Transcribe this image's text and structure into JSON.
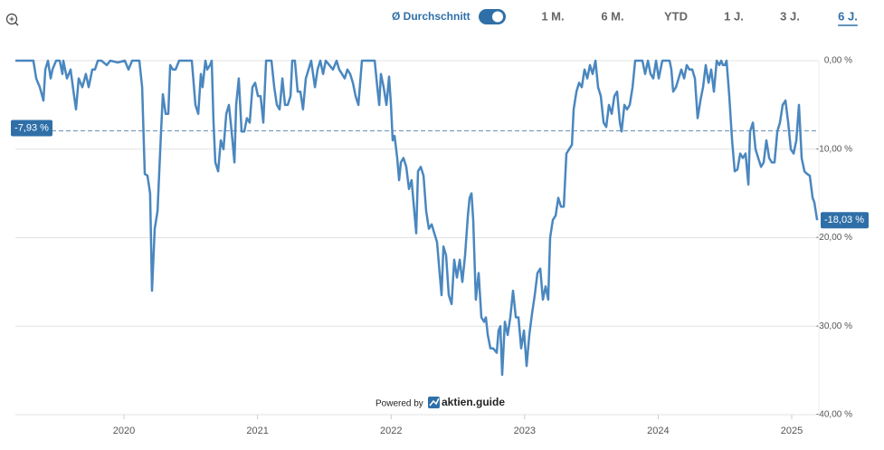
{
  "toolbar": {
    "average_toggle": "Ø Durchschnitt",
    "ranges": [
      "1 M.",
      "6 M.",
      "YTD",
      "1 J.",
      "3 J.",
      "6 J."
    ],
    "active": 5
  },
  "watermark": {
    "prefix": "Powered by",
    "brand": "aktien.guide"
  },
  "chart_data": {
    "type": "line",
    "xlim": [
      2019.187,
      2025.203
    ],
    "xticks": [
      2020,
      2021,
      2022,
      2023,
      2024,
      2025
    ],
    "ylim": [
      -40,
      0
    ],
    "yticks": [
      {
        "value": 0,
        "label": "0,00 %"
      },
      {
        "value": -10,
        "label": "-10,00 %"
      },
      {
        "value": -20,
        "label": "-20,00 %"
      },
      {
        "value": -30,
        "label": "-30,00 %"
      },
      {
        "value": -40,
        "label": "-40,00 %"
      }
    ],
    "grid": true,
    "average": {
      "value": -7.93,
      "label": "-7,93 %"
    },
    "last": {
      "value": -18.03,
      "label": "-18,03 %"
    },
    "x": [
      2019.187,
      2019.322,
      2019.343,
      2019.37,
      2019.397,
      2019.411,
      2019.431,
      2019.451,
      2019.465,
      2019.492,
      2019.519,
      2019.539,
      2019.546,
      2019.573,
      2019.6,
      2019.627,
      2019.641,
      2019.661,
      2019.688,
      2019.715,
      2019.736,
      2019.763,
      2019.783,
      2019.804,
      2019.831,
      2019.871,
      2019.898,
      2019.953,
      2020.007,
      2020.034,
      2020.061,
      2020.115,
      2020.136,
      2020.156,
      2020.176,
      2020.196,
      2020.21,
      2020.23,
      2020.251,
      2020.278,
      2020.291,
      2020.312,
      2020.332,
      2020.346,
      2020.366,
      2020.386,
      2020.413,
      2020.461,
      2020.508,
      2020.535,
      2020.556,
      2020.576,
      2020.589,
      2020.61,
      2020.623,
      2020.644,
      2020.657,
      2020.671,
      2020.684,
      2020.705,
      2020.725,
      2020.745,
      2020.766,
      2020.786,
      2020.806,
      2020.827,
      2020.84,
      2020.86,
      2020.881,
      2020.901,
      2020.921,
      2020.942,
      2020.962,
      2020.982,
      2021.003,
      2021.023,
      2021.043,
      2021.064,
      2021.084,
      2021.104,
      2021.125,
      2021.145,
      2021.165,
      2021.186,
      2021.206,
      2021.226,
      2021.247,
      2021.26,
      2021.28,
      2021.301,
      2021.321,
      2021.341,
      2021.362,
      2021.382,
      2021.402,
      2021.43,
      2021.45,
      2021.47,
      2021.491,
      2021.511,
      2021.538,
      2021.565,
      2021.592,
      2021.612,
      2021.633,
      2021.653,
      2021.673,
      2021.694,
      2021.714,
      2021.734,
      2021.755,
      2021.782,
      2021.809,
      2021.85,
      2021.877,
      2021.897,
      2021.911,
      2021.924,
      2021.944,
      2021.965,
      2021.985,
      2021.999,
      2022.012,
      2022.026,
      2022.046,
      2022.06,
      2022.073,
      2022.093,
      2022.114,
      2022.134,
      2022.154,
      2022.168,
      2022.188,
      2022.202,
      2022.222,
      2022.243,
      2022.263,
      2022.283,
      2022.304,
      2022.324,
      2022.344,
      2022.364,
      2022.378,
      2022.392,
      2022.412,
      2022.432,
      2022.453,
      2022.473,
      2022.493,
      2022.514,
      2022.534,
      2022.554,
      2022.575,
      2022.588,
      2022.602,
      2022.615,
      2022.635,
      2022.656,
      2022.676,
      2022.696,
      2022.71,
      2022.724,
      2022.744,
      2022.764,
      2022.791,
      2022.805,
      2022.818,
      2022.832,
      2022.852,
      2022.873,
      2022.893,
      2022.913,
      2022.934,
      2022.954,
      2022.974,
      2022.995,
      2023.015,
      2023.035,
      2023.056,
      2023.076,
      2023.096,
      2023.117,
      2023.137,
      2023.157,
      2023.177,
      2023.191,
      2023.211,
      2023.232,
      2023.252,
      2023.272,
      2023.293,
      2023.313,
      2023.333,
      2023.354,
      2023.367,
      2023.388,
      2023.408,
      2023.428,
      2023.448,
      2023.469,
      2023.489,
      2023.509,
      2023.53,
      2023.55,
      2023.57,
      2023.591,
      2023.611,
      2023.631,
      2023.652,
      2023.672,
      2023.692,
      2023.713,
      2023.726,
      2023.747,
      2023.767,
      2023.787,
      2023.808,
      2023.828,
      2023.848,
      2023.882,
      2023.902,
      2023.923,
      2023.943,
      2023.963,
      2023.984,
      2024.004,
      2024.031,
      2024.058,
      2024.085,
      2024.099,
      2024.112,
      2024.133,
      2024.153,
      2024.173,
      2024.194,
      2024.214,
      2024.234,
      2024.255,
      2024.275,
      2024.295,
      2024.316,
      2024.336,
      2024.356,
      2024.377,
      2024.397,
      2024.417,
      2024.438,
      2024.458,
      2024.472,
      2024.485,
      2024.499,
      2024.512,
      2024.532,
      2024.553,
      2024.573,
      2024.593,
      2024.614,
      2024.634,
      2024.654,
      2024.675,
      2024.688,
      2024.709,
      2024.729,
      2024.749,
      2024.77,
      2024.79,
      2024.81,
      2024.831,
      2024.851,
      2024.871,
      2024.892,
      2024.912,
      2024.932,
      2024.953,
      2024.973,
      2024.993,
      2025.014,
      2025.034,
      2025.054,
      2025.074,
      2025.095,
      2025.115,
      2025.135,
      2025.156,
      2025.169,
      2025.19
    ],
    "series": [
      {
        "color": "#4a87bf",
        "values": [
          0,
          0,
          -2,
          -3,
          -4.5,
          -1,
          0,
          -2,
          -1,
          0,
          0,
          -1.5,
          0,
          -2,
          -1,
          -4,
          -5.5,
          -2,
          -3,
          -1.5,
          -3,
          -1,
          -1,
          0,
          0,
          -0.5,
          0,
          -0.2,
          0,
          -1,
          0,
          0,
          -3,
          -12.8,
          -13,
          -15,
          -26,
          -19,
          -17,
          -8,
          -3.8,
          -6,
          -6,
          -0.5,
          -1,
          -1,
          0,
          0,
          0,
          -5,
          -6,
          -1.5,
          -3,
          0,
          -1,
          -0.5,
          0,
          -7,
          -11.5,
          -12.5,
          -9,
          -10,
          -6,
          -5,
          -8,
          -11.5,
          -5,
          -2,
          -8,
          -8,
          -6.5,
          -7,
          -3,
          -2.5,
          -4,
          -4,
          -7,
          0,
          0,
          0,
          -3,
          -5,
          -5.5,
          -2,
          -5,
          -5,
          -4,
          0,
          0,
          -3.5,
          -3.5,
          -5.5,
          -2,
          -1,
          0,
          -3,
          -1,
          0,
          -1.5,
          0,
          -0.5,
          -1,
          0,
          -1,
          -1.5,
          -2,
          -1,
          -1.5,
          -2.5,
          -4,
          -5,
          0,
          0,
          0,
          0,
          -3,
          -5,
          -1.5,
          -3,
          -5,
          -1.8,
          -5,
          -9,
          -8.5,
          -11,
          -13.5,
          -11.5,
          -11,
          -12,
          -14.5,
          -13.5,
          -16,
          -19.5,
          -12.5,
          -12,
          -13,
          -17,
          -19,
          -18.5,
          -19.5,
          -20.5,
          -24,
          -26.5,
          -21,
          -22,
          -26.5,
          -27.5,
          -22.5,
          -24.5,
          -22.5,
          -25,
          -22,
          -17.5,
          -15.5,
          -15,
          -18,
          -27,
          -24,
          -29,
          -29.5,
          -29,
          -31,
          -32.5,
          -32.5,
          -33,
          -30.5,
          -30,
          -35.5,
          -29.5,
          -31,
          -29,
          -26,
          -29,
          -29,
          -32.5,
          -30.5,
          -34.5,
          -31,
          -28.5,
          -26.5,
          -24,
          -23.5,
          -27,
          -25.5,
          -27,
          -20,
          -18,
          -17.5,
          -15.5,
          -16.5,
          -16.5,
          -10.5,
          -10,
          -9.5,
          -5.5,
          -3.5,
          -2.5,
          -3,
          -1,
          -2,
          -0.5,
          -1.5,
          0,
          -3,
          -4,
          -7,
          -7.5,
          -5,
          -6,
          -4,
          -3.5,
          -7,
          -8,
          -5,
          -5.5,
          -5,
          -3,
          0,
          0,
          0,
          -1.5,
          0,
          -1.5,
          -2,
          0,
          -2,
          0,
          0,
          0,
          -1,
          -3.5,
          -3,
          -2,
          -1,
          -2,
          -0.5,
          -1,
          -1,
          -2,
          -6.5,
          -4.5,
          -3,
          -0.5,
          -2.5,
          -1,
          -3.5,
          0,
          -0.5,
          0,
          -0.5,
          -0.5,
          0,
          -4,
          -9,
          -12.5,
          -12.3,
          -10.5,
          -11,
          -10.5,
          -14,
          -8,
          -7,
          -10,
          -11,
          -12,
          -11.5,
          -9,
          -11,
          -11.5,
          -11.5,
          -8,
          -7,
          -5,
          -4.5,
          -7,
          -10,
          -10.5,
          -9,
          -5,
          -11,
          -12.5,
          -12.8,
          -13,
          -15.5,
          -16,
          -18.03
        ]
      }
    ]
  }
}
